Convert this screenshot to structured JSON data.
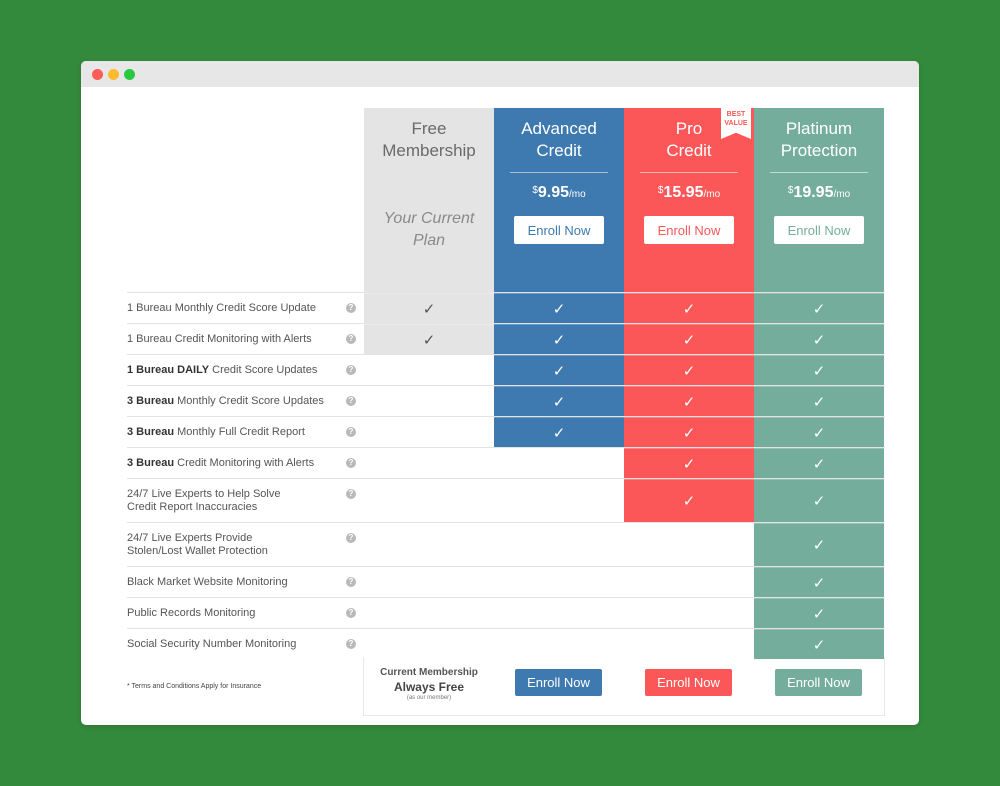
{
  "plans": {
    "free": {
      "name_line1": "Free",
      "name_line2": "Membership",
      "current_line1": "Your Current",
      "current_line2": "Plan"
    },
    "advanced": {
      "name_line1": "Advanced",
      "name_line2": "Credit",
      "currency": "$",
      "price": "9.95",
      "period": "/mo",
      "enroll": "Enroll Now"
    },
    "pro": {
      "name_line1": "Pro",
      "name_line2": "Credit",
      "currency": "$",
      "price": "15.95",
      "period": "/mo",
      "enroll": "Enroll Now",
      "ribbon_line1": "BEST",
      "ribbon_line2": "VALUE"
    },
    "platinum": {
      "name_line1": "Platinum",
      "name_line2": "Protection",
      "currency": "$",
      "price": "19.95",
      "period": "/mo",
      "enroll": "Enroll Now"
    }
  },
  "features": [
    {
      "bold": "",
      "text": "1 Bureau Monthly Credit Score Update",
      "line2": "",
      "included": [
        true,
        true,
        true,
        true
      ]
    },
    {
      "bold": "",
      "text": "1 Bureau Credit Monitoring with Alerts",
      "line2": "",
      "included": [
        true,
        true,
        true,
        true
      ]
    },
    {
      "bold": "1 Bureau DAILY",
      "text": " Credit Score Updates",
      "line2": "",
      "included": [
        false,
        true,
        true,
        true
      ]
    },
    {
      "bold": "3 Bureau",
      "text": " Monthly Credit Score Updates",
      "line2": "",
      "included": [
        false,
        true,
        true,
        true
      ]
    },
    {
      "bold": "3 Bureau",
      "text": " Monthly Full Credit Report",
      "line2": "",
      "included": [
        false,
        true,
        true,
        true
      ]
    },
    {
      "bold": "3 Bureau",
      "text": " Credit Monitoring with Alerts",
      "line2": "",
      "included": [
        false,
        false,
        true,
        true
      ]
    },
    {
      "bold": "",
      "text": "24/7 Live Experts to Help Solve",
      "line2": "Credit Report Inaccuracies",
      "included": [
        false,
        false,
        true,
        true
      ]
    },
    {
      "bold": "",
      "text": "24/7 Live Experts Provide",
      "line2": "Stolen/Lost Wallet Protection",
      "included": [
        false,
        false,
        false,
        true
      ]
    },
    {
      "bold": "",
      "text": "Black Market Website Monitoring",
      "line2": "",
      "included": [
        false,
        false,
        false,
        true
      ]
    },
    {
      "bold": "",
      "text": "Public Records Monitoring",
      "line2": "",
      "included": [
        false,
        false,
        false,
        true
      ]
    },
    {
      "bold": "",
      "text": "Social Security Number Monitoring",
      "line2": "",
      "included": [
        false,
        false,
        false,
        true
      ]
    }
  ],
  "icons": {
    "check": "check-icon",
    "help": "help-icon"
  },
  "check_glyph": "✓",
  "help_glyph": "?",
  "footer": {
    "terms": "* Terms and Conditions Apply for Insurance",
    "current_membership": "Current Membership",
    "always_free": "Always Free",
    "as_member": "(as our member)",
    "enroll_advanced": "Enroll Now",
    "enroll_pro": "Enroll Now",
    "enroll_platinum": "Enroll Now"
  },
  "colors": {
    "background": "#348a3c",
    "free": "#e4e4e4",
    "advanced": "#3e7aaf",
    "pro": "#fb5758",
    "platinum": "#75ad9d"
  }
}
